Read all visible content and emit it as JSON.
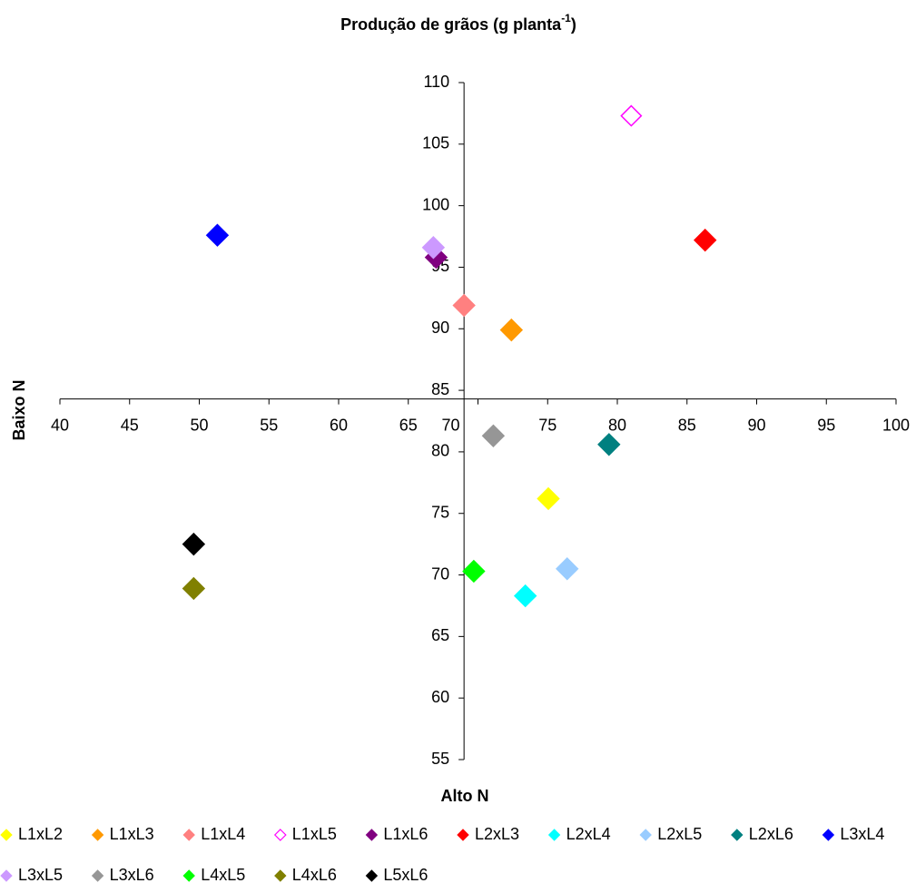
{
  "chart_data": {
    "type": "scatter",
    "title": {
      "text": "Produção de grãos (g planta",
      "superscript": "-1",
      "suffix": ")"
    },
    "x_label": "Alto N",
    "y_label": "Baixo N",
    "xlim": [
      40,
      100
    ],
    "xticks": [
      40,
      45,
      50,
      55,
      60,
      65,
      70,
      75,
      80,
      85,
      90,
      95,
      100
    ],
    "ylim": [
      55,
      110
    ],
    "yticks": [
      55,
      60,
      65,
      70,
      75,
      80,
      85,
      90,
      95,
      100,
      105,
      110
    ],
    "x_axis_crosses_y_at": 84.3,
    "y_axis_crosses_x_at": 69,
    "series": [
      {
        "name": "L1xL2",
        "color": "#ffff00",
        "x": [
          75.05
        ],
        "values": [
          76.2
        ]
      },
      {
        "name": "L1xL3",
        "color": "#ff9900",
        "x": [
          72.4
        ],
        "values": [
          89.9
        ]
      },
      {
        "name": "L1xL4",
        "color": "#ff8080",
        "x": [
          69.0
        ],
        "values": [
          91.9
        ]
      },
      {
        "name": "L1xL5",
        "color": "#ff00ff",
        "x": [
          81.0
        ],
        "values": [
          107.3
        ],
        "filled": false
      },
      {
        "name": "L1xL6",
        "color": "#800080",
        "x": [
          67.0
        ],
        "values": [
          95.8
        ]
      },
      {
        "name": "L2xL3",
        "color": "#ff0000",
        "x": [
          86.3
        ],
        "values": [
          97.2
        ]
      },
      {
        "name": "L2xL4",
        "color": "#00ffff",
        "x": [
          73.4
        ],
        "values": [
          68.3
        ]
      },
      {
        "name": "L2xL5",
        "color": "#99ccff",
        "x": [
          76.4
        ],
        "values": [
          70.5
        ]
      },
      {
        "name": "L2xL6",
        "color": "#008080",
        "x": [
          79.4
        ],
        "values": [
          80.6
        ]
      },
      {
        "name": "L3xL4",
        "color": "#0000ff",
        "x": [
          51.3
        ],
        "values": [
          97.6
        ]
      },
      {
        "name": "L3xL5",
        "color": "#cc99ff",
        "x": [
          66.8
        ],
        "values": [
          96.6
        ]
      },
      {
        "name": "L3xL6",
        "color": "#969696",
        "x": [
          71.1
        ],
        "values": [
          81.3
        ]
      },
      {
        "name": "L4xL5",
        "color": "#00ff00",
        "x": [
          69.7
        ],
        "values": [
          70.3
        ]
      },
      {
        "name": "L4xL6",
        "color": "#808000",
        "x": [
          49.6
        ],
        "values": [
          68.9
        ]
      },
      {
        "name": "L5xL6",
        "color": "#000000",
        "x": [
          49.6
        ],
        "values": [
          72.5
        ]
      }
    ]
  }
}
